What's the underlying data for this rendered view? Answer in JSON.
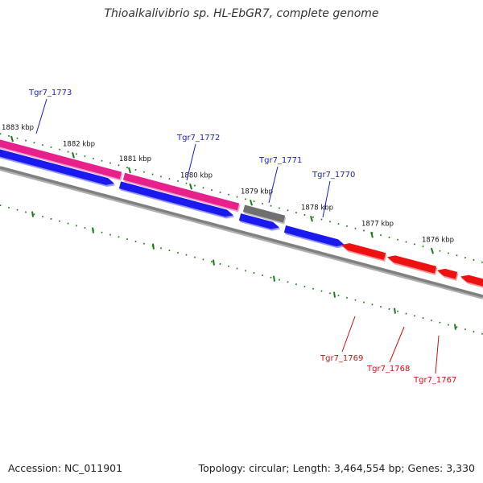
{
  "title": "Thioalkalivibrio sp. HL-EbGR7, complete genome",
  "footer": {
    "accession": "Accession: NC_011901",
    "summary": "Topology: circular; Length: 3,464,554 bp; Genes: 3,330"
  },
  "colors": {
    "forward_gene": "#e8208c",
    "reverse_gene": "#1a1aee",
    "pseudo_gene": "#707070",
    "complement_gene": "#ee1111",
    "backbone": "#808080",
    "tick": "#1a7a1a",
    "forward_label": "#1a1acc",
    "reverse_label": "#cc1111"
  },
  "scale": {
    "labels": [
      "1883 kbp",
      "1882 kbp",
      "1881 kbp",
      "1880 kbp",
      "1879 kbp",
      "1878 kbp",
      "1877 kbp",
      "1876 kbp"
    ]
  },
  "genes": [
    {
      "label": "Tgr7_1773",
      "strand": "forward"
    },
    {
      "label": "Tgr7_1772",
      "strand": "forward"
    },
    {
      "label": "Tgr7_1771",
      "strand": "forward"
    },
    {
      "label": "Tgr7_1770",
      "strand": "forward"
    },
    {
      "label": "Tgr7_1769",
      "strand": "reverse"
    },
    {
      "label": "Tgr7_1768",
      "strand": "reverse"
    },
    {
      "label": "Tgr7_1767",
      "strand": "reverse"
    }
  ]
}
